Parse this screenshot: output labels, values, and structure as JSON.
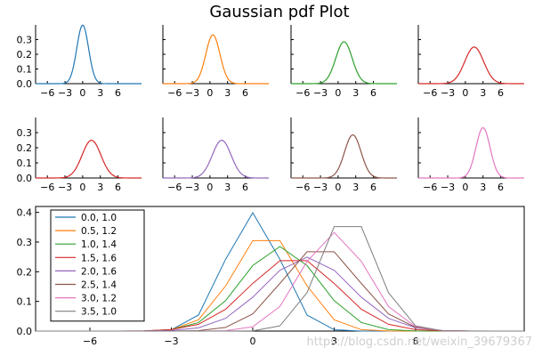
{
  "chart_data": {
    "type": "line",
    "title": "Gaussian pdf Plot",
    "pdf": "normal",
    "x_range": [
      -8,
      10
    ],
    "series": [
      {
        "name": "0.0, 1.0",
        "mean": 0.0,
        "std": 1.0,
        "color": "#1f77b4"
      },
      {
        "name": "0.5, 1.2",
        "mean": 0.5,
        "std": 1.2,
        "color": "#ff7f0e"
      },
      {
        "name": "1.0, 1.4",
        "mean": 1.0,
        "std": 1.4,
        "color": "#2ca02c"
      },
      {
        "name": "1.5, 1.6",
        "mean": 1.5,
        "std": 1.6,
        "color": "#d62728"
      },
      {
        "name": "2.0, 1.6",
        "mean": 2.0,
        "std": 1.6,
        "color": "#9467bd"
      },
      {
        "name": "2.5, 1.4",
        "mean": 2.5,
        "std": 1.4,
        "color": "#8c564b"
      },
      {
        "name": "3.0, 1.2",
        "mean": 3.0,
        "std": 1.2,
        "color": "#e377c2"
      },
      {
        "name": "3.5, 1.0",
        "mean": 3.5,
        "std": 1.0,
        "color": "#7f7f7f"
      }
    ],
    "small_panels": {
      "grid": "2x4",
      "series_order": [
        0,
        1,
        2,
        3,
        3,
        4,
        5,
        6
      ],
      "ylim": [
        0,
        0.4
      ],
      "x_ticks": [
        -6,
        -3,
        0,
        3,
        6
      ],
      "y_ticks": [
        0.0,
        0.1,
        0.2,
        0.3
      ],
      "y_tick_labels": [
        "0.0",
        "0.1",
        "0.2",
        "0.3"
      ],
      "y_labels_on": "left column only",
      "grid_lines": false,
      "legend": false
    },
    "main_panel": {
      "series": "all",
      "ylim": [
        0,
        0.42
      ],
      "x_ticks": [
        -6,
        -3,
        0,
        3,
        6
      ],
      "y_ticks": [
        0.0,
        0.1,
        0.2,
        0.3,
        0.4
      ],
      "y_tick_labels": [
        "0.0",
        "0.1",
        "0.2",
        "0.3",
        "0.4"
      ],
      "legend": "top-left",
      "frame": "box",
      "grid_lines": false
    }
  },
  "watermark": "https://blog.csdn.net/weixin_39679367"
}
